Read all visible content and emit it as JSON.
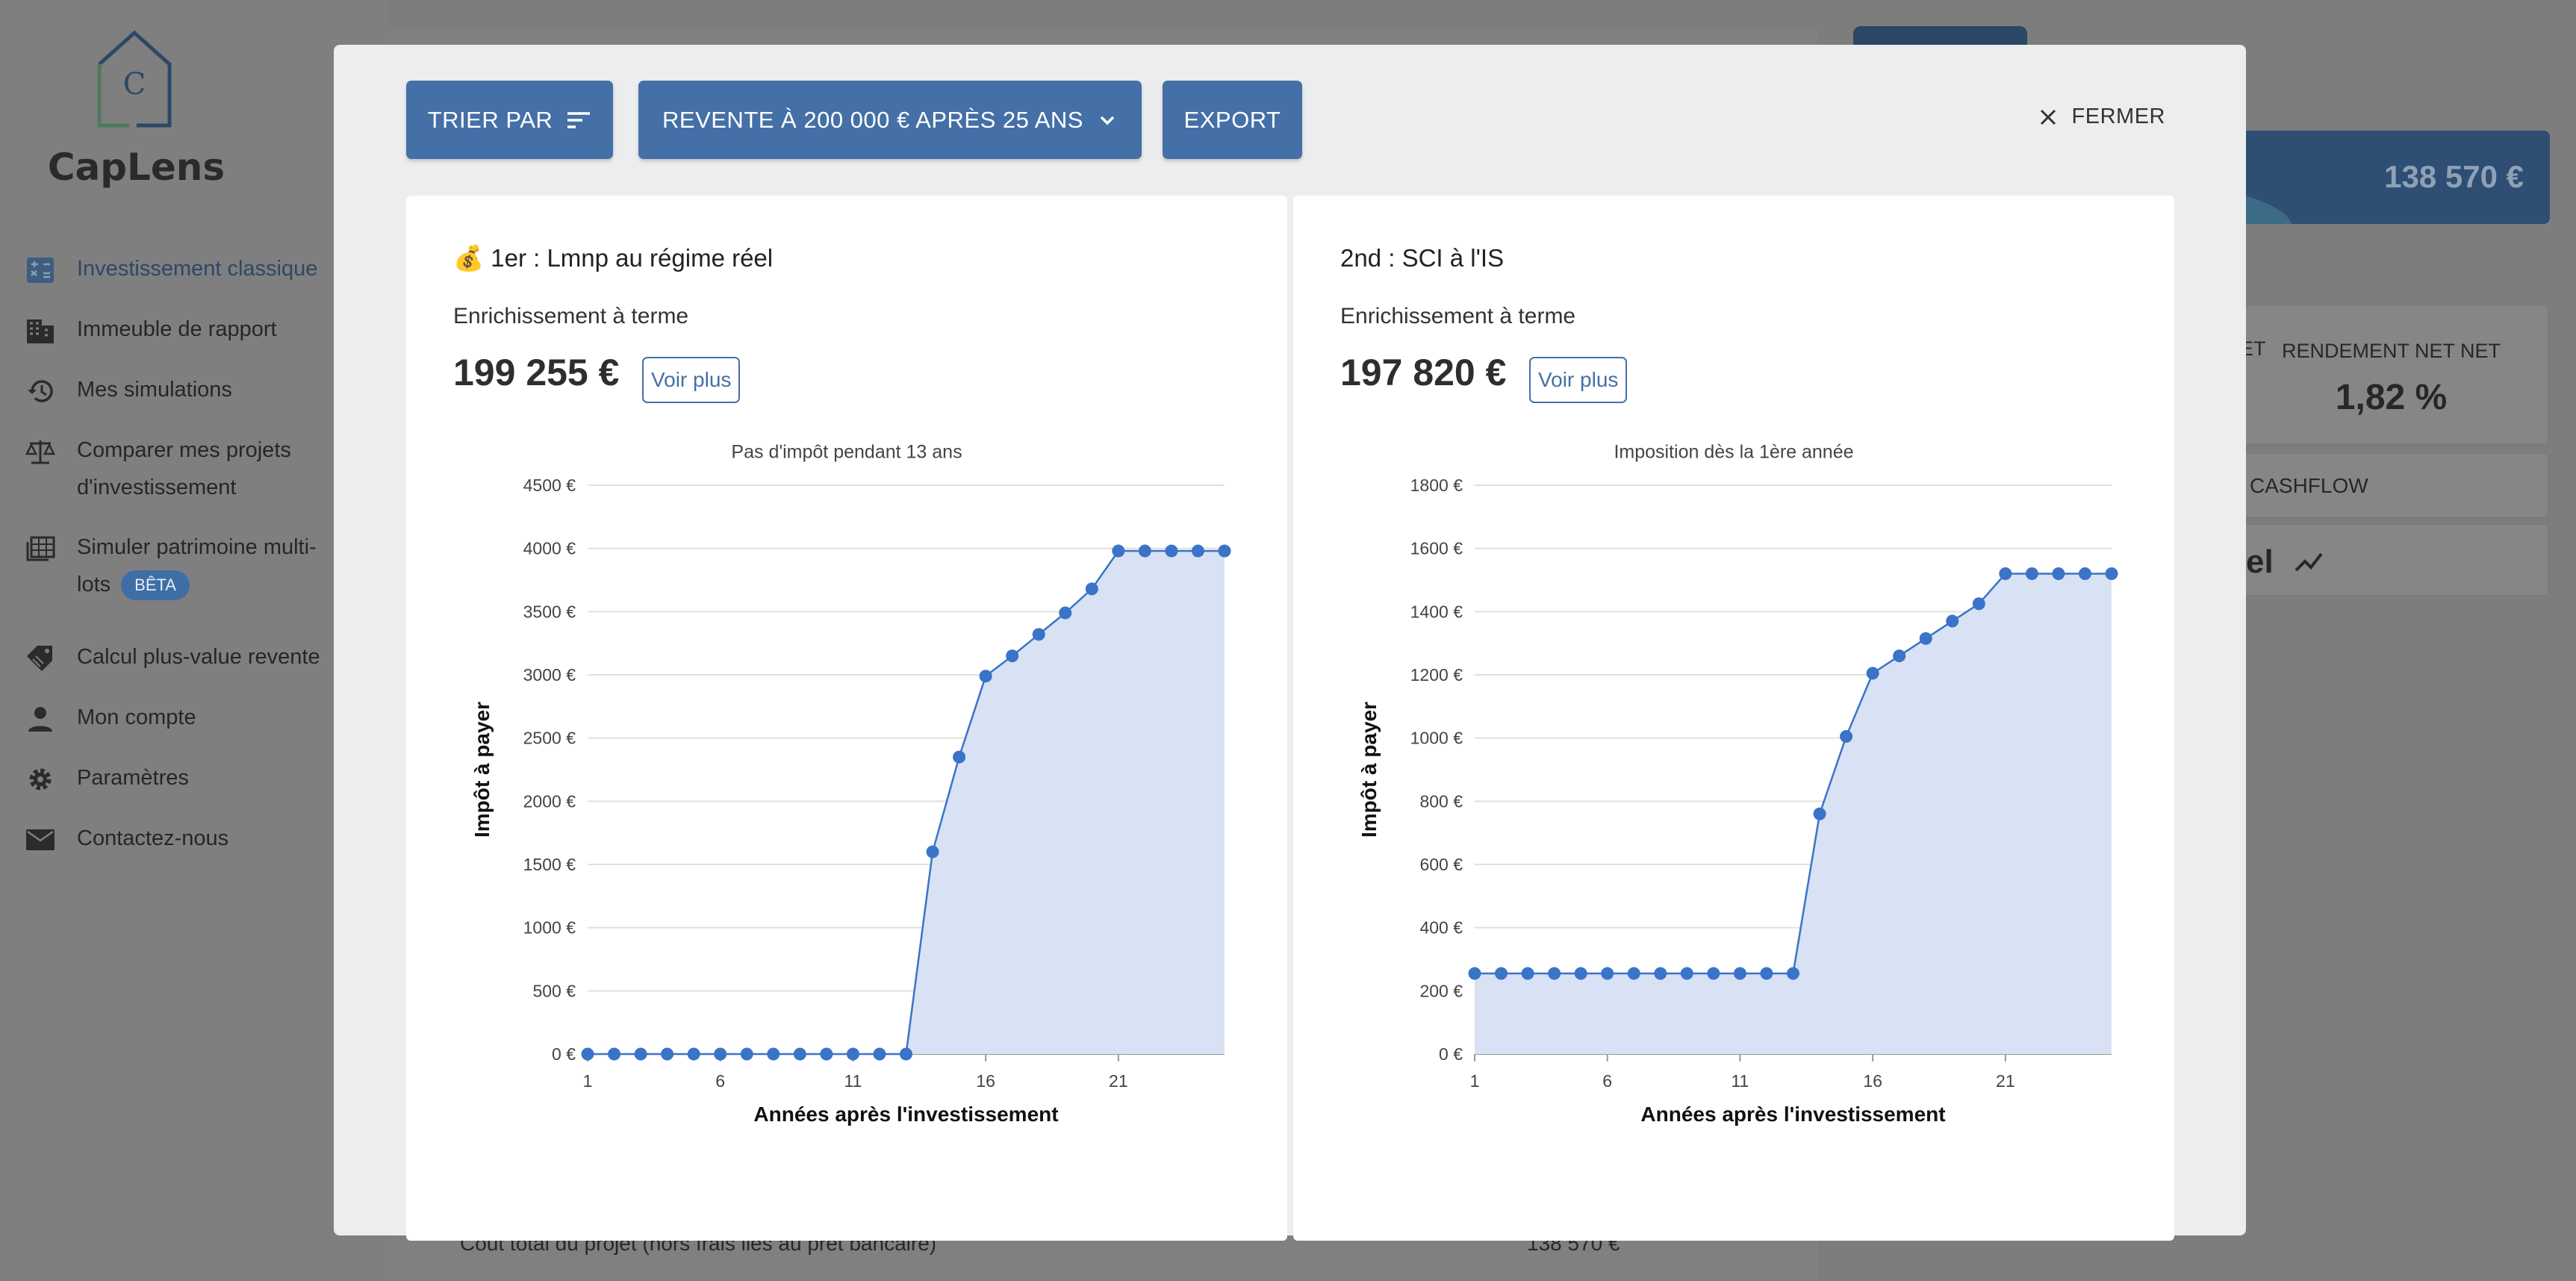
{
  "app": {
    "name": "CapLens",
    "logo_letter": "C"
  },
  "sidebar": {
    "items": [
      {
        "label": "Investissement classique",
        "icon": "calculator-icon",
        "active": true
      },
      {
        "label": "Immeuble de rapport",
        "icon": "building-icon"
      },
      {
        "label": "Mes simulations",
        "icon": "history-icon"
      },
      {
        "label": "Comparer mes projets d'investissement",
        "icon": "scale-icon"
      },
      {
        "label": "Simuler patrimoine multi-lots",
        "icon": "grid-table-icon",
        "badge": "BÊTA"
      },
      {
        "label": "Calcul plus-value revente",
        "icon": "price-tag-icon"
      },
      {
        "label": "Mon compte",
        "icon": "person-icon"
      },
      {
        "label": "Paramètres",
        "icon": "gear-icon"
      },
      {
        "label": "Contactez-nous",
        "icon": "mail-icon"
      }
    ]
  },
  "background": {
    "banner_value": "138 570 €",
    "stat_label_cut": "ET",
    "stat_label": "RENDEMENT NET NET",
    "stat_value": "1,82 %",
    "cashflow_tab": "CASHFLOW",
    "cut_title": "el",
    "footer_label": "Coût total du projet (hors frais liés au prêt bancaire)",
    "footer_value": "138 570 €"
  },
  "modal": {
    "sort_label": "TRIER PAR",
    "resale_label": "REVENTE À 200 000 € APRÈS 25 ANS",
    "export_label": "EXPORT",
    "close_label": "FERMER",
    "cards": [
      {
        "title": "💰 1er : Lmnp au régime réel",
        "subtitle": "Enrichissement à terme",
        "value": "199 255 €",
        "more_label": "Voir plus"
      },
      {
        "title": "2nd : SCI à l'IS",
        "subtitle": "Enrichissement à terme",
        "value": "197 820 €",
        "more_label": "Voir plus"
      }
    ]
  },
  "colors": {
    "primary": "#4470a7",
    "line": "#3a73c8",
    "area": "#d8e2f4",
    "grid": "#e0e0e0"
  },
  "chart_data": [
    {
      "type": "area",
      "title": "Pas d'impôt pendant 13 ans",
      "xlabel": "Années après l'investissement",
      "ylabel": "Impôt à payer",
      "x": [
        1,
        2,
        3,
        4,
        5,
        6,
        7,
        8,
        9,
        10,
        11,
        12,
        13,
        14,
        15,
        16,
        17,
        18,
        19,
        20,
        21,
        22,
        23,
        24,
        25
      ],
      "y": [
        0,
        0,
        0,
        0,
        0,
        0,
        0,
        0,
        0,
        0,
        0,
        0,
        0,
        1600,
        2350,
        2990,
        3150,
        3320,
        3490,
        3680,
        3980,
        3980,
        3980,
        3980,
        3980
      ],
      "xticks": [
        "1",
        "6",
        "11",
        "16",
        "21"
      ],
      "yticks": [
        "0 €",
        "500 €",
        "1000 €",
        "1500 €",
        "2000 €",
        "2500 €",
        "3000 €",
        "3500 €",
        "4000 €",
        "4500 €"
      ],
      "ylim": [
        0,
        4500
      ],
      "grid": true
    },
    {
      "type": "area",
      "title": "Imposition dès la 1ère année",
      "xlabel": "Années après l'investissement",
      "ylabel": "Impôt à payer",
      "x": [
        1,
        2,
        3,
        4,
        5,
        6,
        7,
        8,
        9,
        10,
        11,
        12,
        13,
        14,
        15,
        16,
        17,
        18,
        19,
        20,
        21,
        22,
        23,
        24,
        25
      ],
      "y": [
        255,
        255,
        255,
        255,
        255,
        255,
        255,
        255,
        255,
        255,
        255,
        255,
        255,
        760,
        1005,
        1205,
        1260,
        1315,
        1370,
        1425,
        1520,
        1520,
        1520,
        1520,
        1520
      ],
      "xticks": [
        "1",
        "6",
        "11",
        "16",
        "21"
      ],
      "yticks": [
        "0 €",
        "200 €",
        "400 €",
        "600 €",
        "800 €",
        "1000 €",
        "1200 €",
        "1400 €",
        "1600 €",
        "1800 €"
      ],
      "ylim": [
        0,
        1800
      ],
      "grid": true
    }
  ]
}
